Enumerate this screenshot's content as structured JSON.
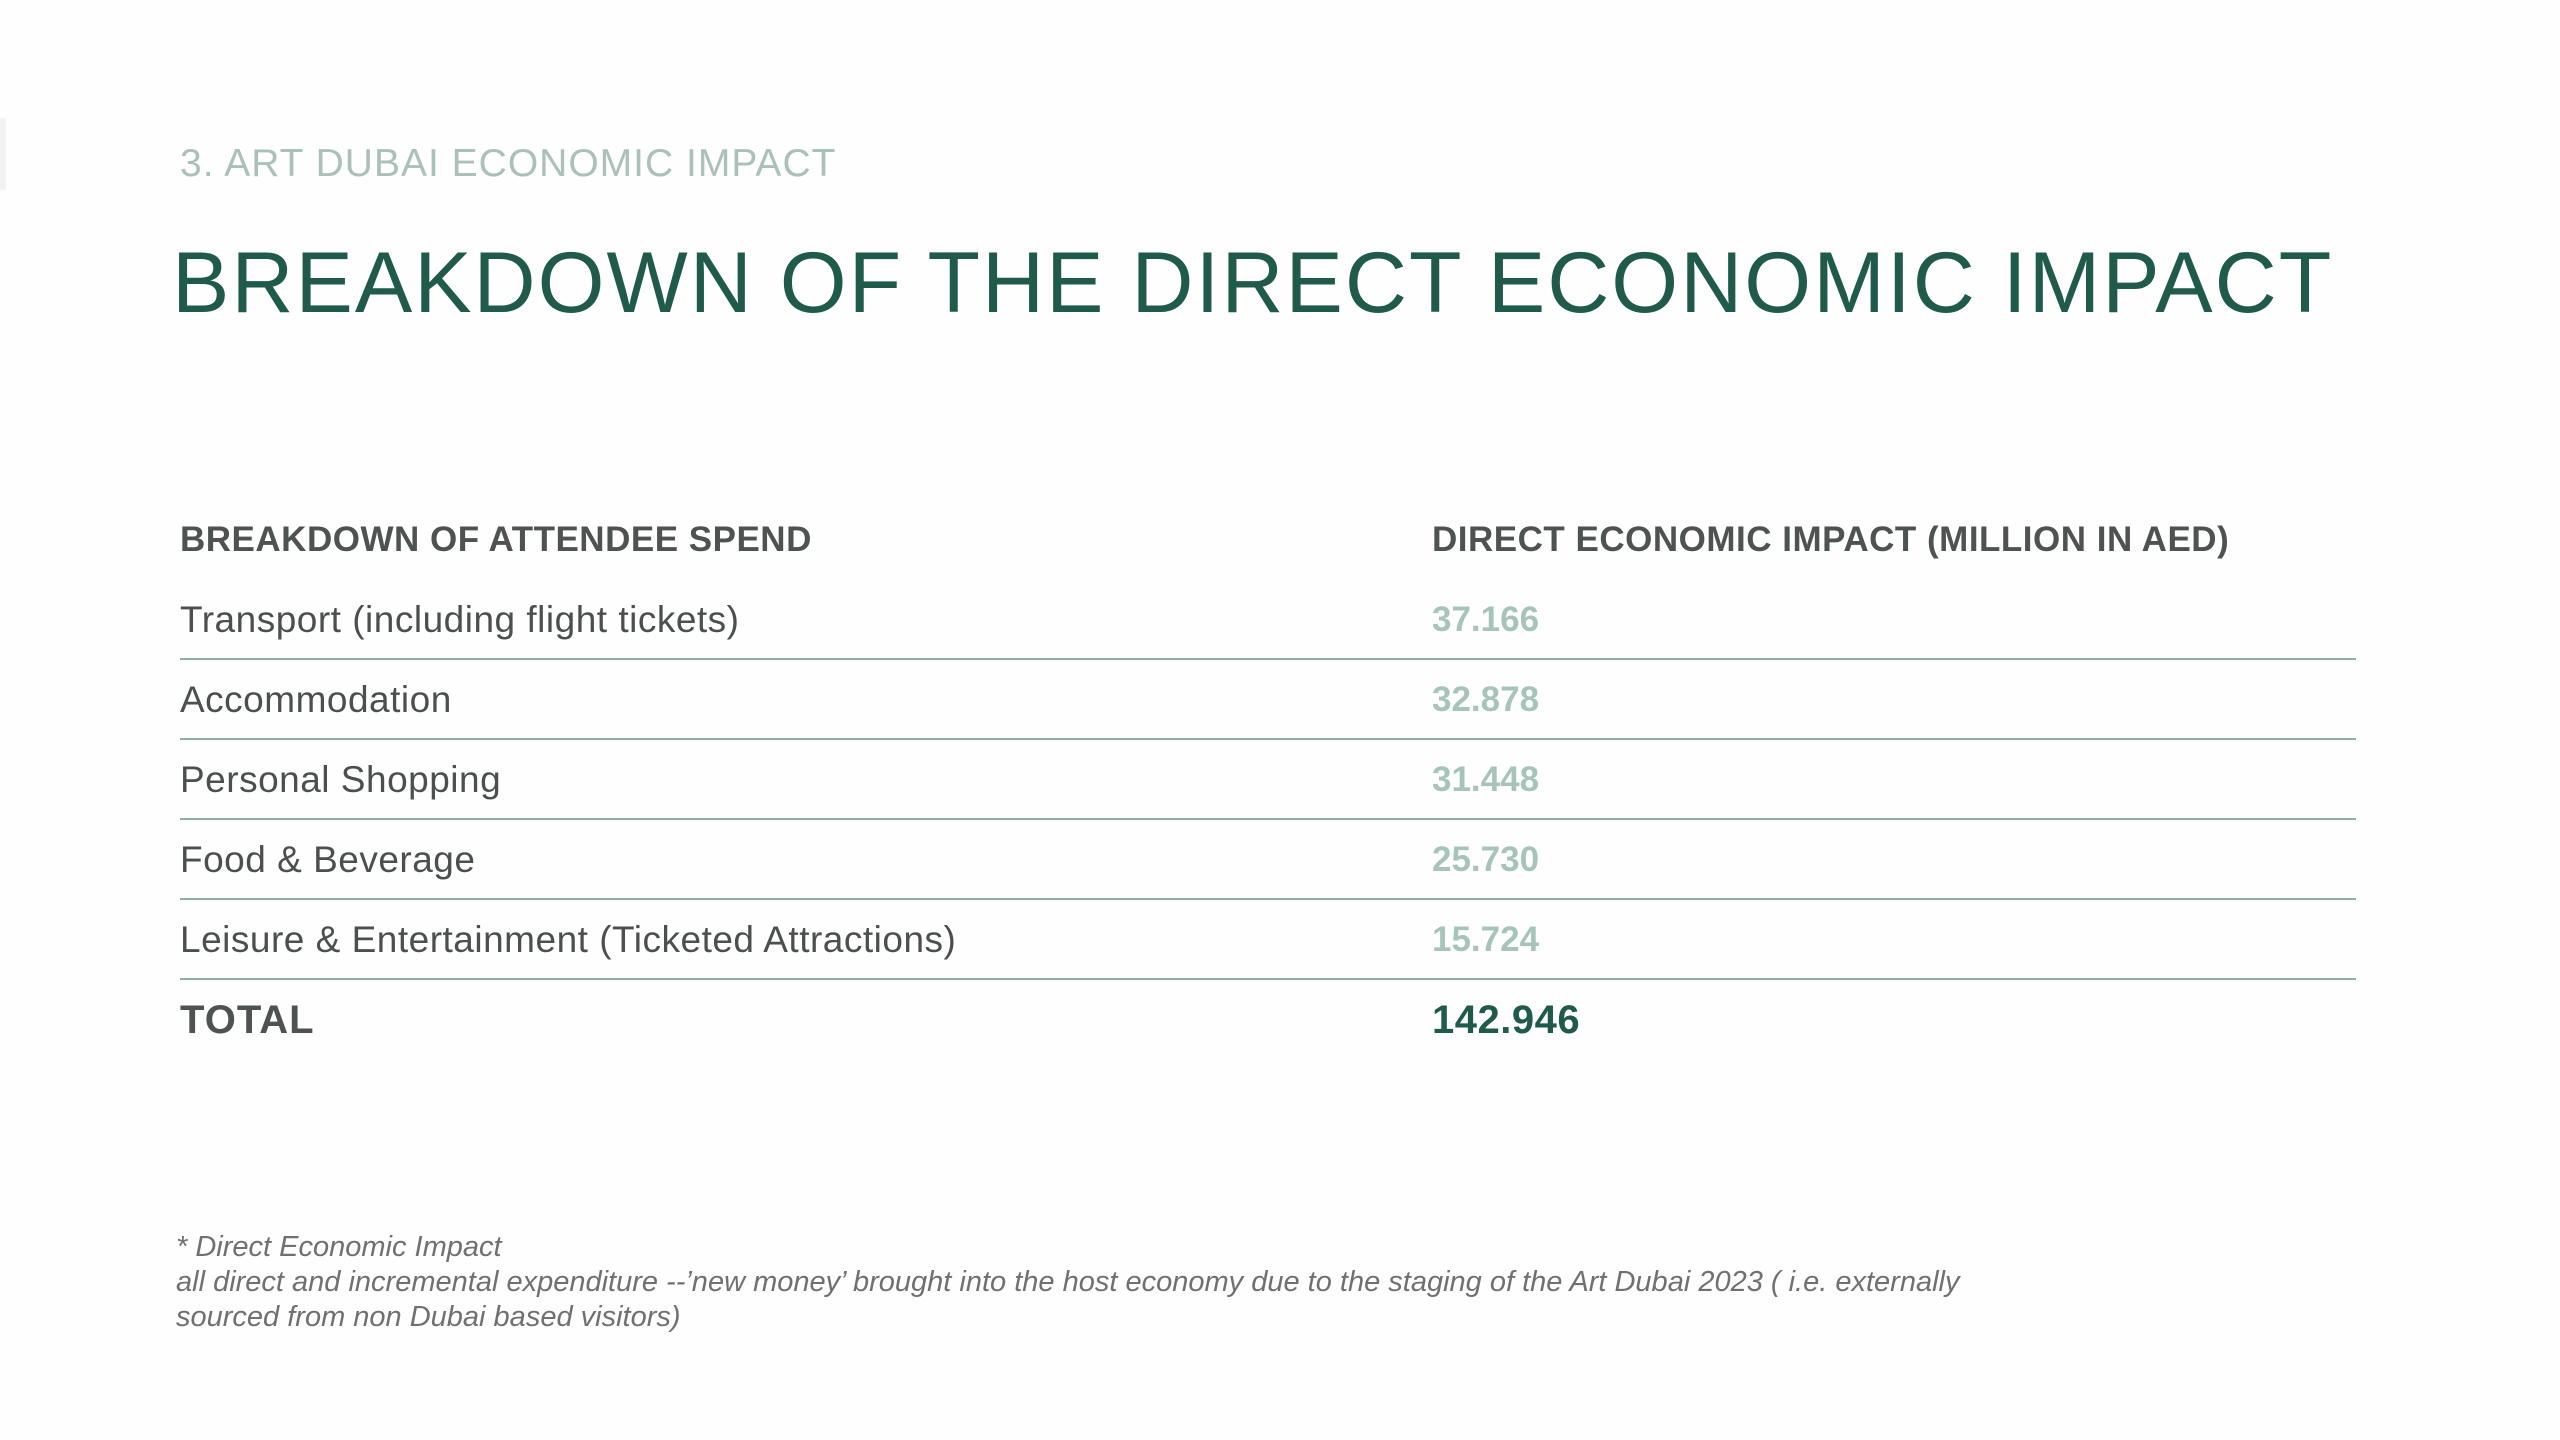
{
  "section_label": "3. ART DUBAI ECONOMIC IMPACT",
  "title": "BREAKDOWN OF THE DIRECT ECONOMIC IMPACT",
  "table": {
    "header": {
      "label": "BREAKDOWN OF ATTENDEE SPEND",
      "value": "DIRECT ECONOMIC IMPACT (MILLION IN AED)"
    },
    "rows": [
      {
        "label": "Transport (including flight tickets)",
        "value": "37.166"
      },
      {
        "label": "Accommodation",
        "value": "32.878"
      },
      {
        "label": "Personal Shopping",
        "value": "31.448"
      },
      {
        "label": "Food & Beverage",
        "value": "25.730"
      },
      {
        "label": "Leisure & Entertainment (Ticketed Attractions)",
        "value": "15.724"
      }
    ],
    "total": {
      "label": "TOTAL",
      "value": "142.946"
    }
  },
  "footnote": {
    "line1": "* Direct Economic Impact",
    "line2": "all direct and incremental expenditure --’new money’ brought into the host economy due to the staging of the Art Dubai 2023 ( i.e. externally",
    "line3": "sourced from non Dubai based visitors)"
  },
  "colors": {
    "title": "#1f5a4a",
    "section_label": "#a9c1b8",
    "value_light": "#a7c4b9",
    "rule": "#8fb0a5"
  }
}
